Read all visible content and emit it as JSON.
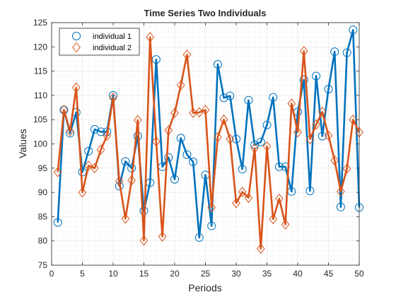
{
  "chart_data": {
    "type": "line",
    "title": "Time Series Two Individuals",
    "xlabel": "Periods",
    "ylabel": "Values",
    "xlim": [
      0,
      50
    ],
    "ylim": [
      75,
      125
    ],
    "xticks": [
      "0",
      "5",
      "10",
      "15",
      "20",
      "25",
      "30",
      "35",
      "40",
      "45",
      "50"
    ],
    "yticks": [
      "75",
      "80",
      "85",
      "90",
      "95",
      "100",
      "105",
      "110",
      "115",
      "120",
      "125"
    ],
    "grid": "on (major and minor, dotted)",
    "legend_position": "top-left",
    "x": [
      1,
      2,
      3,
      4,
      5,
      6,
      7,
      8,
      9,
      10,
      11,
      12,
      13,
      14,
      15,
      16,
      17,
      18,
      19,
      20,
      21,
      22,
      23,
      24,
      25,
      26,
      27,
      28,
      29,
      30,
      31,
      32,
      33,
      34,
      35,
      36,
      37,
      38,
      39,
      40,
      41,
      42,
      43,
      44,
      45,
      46,
      47,
      48,
      49,
      50
    ],
    "series": [
      {
        "name": "individual 1",
        "color": "#0072BD",
        "marker": "circle",
        "values": [
          83.8,
          107.0,
          102.2,
          106.5,
          94.2,
          98.5,
          103.0,
          102.5,
          102.5,
          110.0,
          91.3,
          96.4,
          95.0,
          101.6,
          86.2,
          92.0,
          117.4,
          95.3,
          97.2,
          92.7,
          101.2,
          97.8,
          96.3,
          80.7,
          93.6,
          83.1,
          116.4,
          109.5,
          109.9,
          101.0,
          94.8,
          109.0,
          99.8,
          100.4,
          103.9,
          109.6,
          95.3,
          95.3,
          90.2,
          106.6,
          113.2,
          90.3,
          114.0,
          101.6,
          111.3,
          119.0,
          87.0,
          118.8,
          123.5,
          86.9
        ]
      },
      {
        "name": "individual 2",
        "color": "#D95319",
        "marker": "diamond",
        "values": [
          94.2,
          107.0,
          102.6,
          111.6,
          90.0,
          95.5,
          95.0,
          98.8,
          101.7,
          109.5,
          92.3,
          84.6,
          92.5,
          104.9,
          80.1,
          122.0,
          100.5,
          80.9,
          102.8,
          106.4,
          112.1,
          118.4,
          106.4,
          106.5,
          107.0,
          86.9,
          101.4,
          105.0,
          101.0,
          87.8,
          90.1,
          88.9,
          99.1,
          78.4,
          99.5,
          84.5,
          88.7,
          83.4,
          108.3,
          102.4,
          119.1,
          101.0,
          104.0,
          106.6,
          101.7,
          96.6,
          90.2,
          94.9,
          105.0,
          102.4
        ]
      }
    ]
  }
}
